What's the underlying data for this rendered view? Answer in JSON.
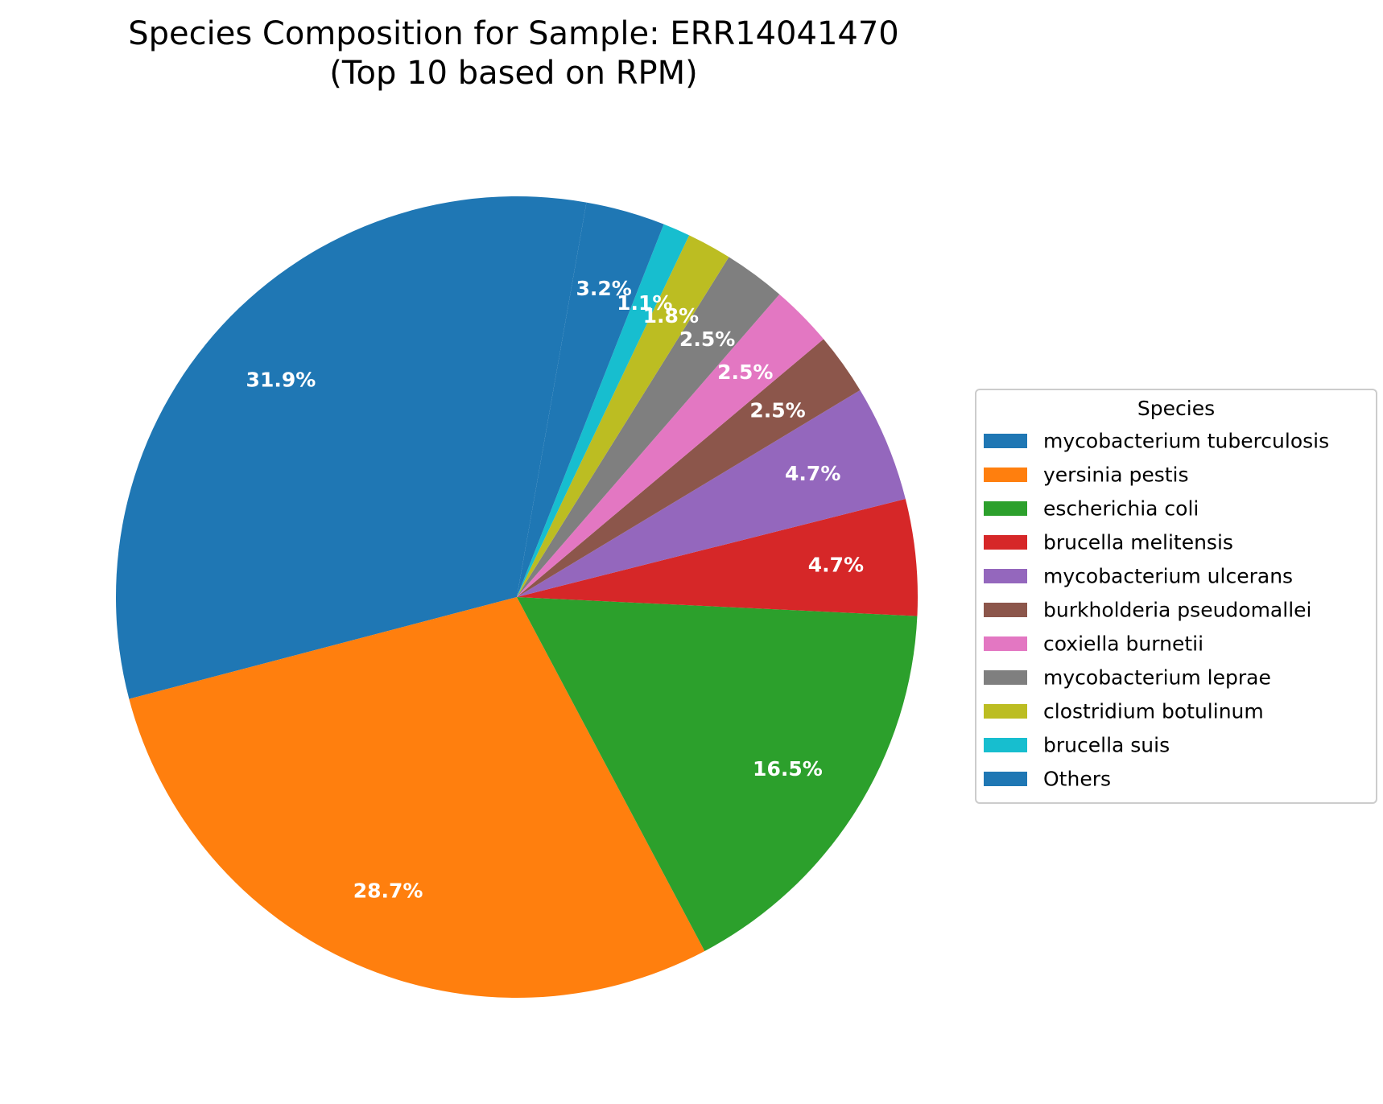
{
  "chart_data": {
    "type": "pie",
    "title": "Species Composition for Sample: ERR14041470",
    "subtitle": "(Top 10 based on RPM)",
    "legend_title": "Species",
    "legend_position": "right",
    "start_angle_deg": 80,
    "direction": "counterclockwise",
    "slices": [
      {
        "label": "mycobacterium tuberculosis",
        "value": 31.9,
        "pct_label": "31.9%",
        "color": "#1f77b4"
      },
      {
        "label": "yersinia pestis",
        "value": 28.7,
        "pct_label": "28.7%",
        "color": "#ff7f0e"
      },
      {
        "label": "escherichia coli",
        "value": 16.5,
        "pct_label": "16.5%",
        "color": "#2ca02c"
      },
      {
        "label": "brucella melitensis",
        "value": 4.7,
        "pct_label": "4.7%",
        "color": "#d62728"
      },
      {
        "label": "mycobacterium ulcerans",
        "value": 4.7,
        "pct_label": "4.7%",
        "color": "#9467bd"
      },
      {
        "label": "burkholderia pseudomallei",
        "value": 2.5,
        "pct_label": "2.5%",
        "color": "#8c564b"
      },
      {
        "label": "coxiella burnetii",
        "value": 2.5,
        "pct_label": "2.5%",
        "color": "#e377c2"
      },
      {
        "label": "mycobacterium leprae",
        "value": 2.5,
        "pct_label": "2.5%",
        "color": "#7f7f7f"
      },
      {
        "label": "clostridium botulinum",
        "value": 1.8,
        "pct_label": "1.8%",
        "color": "#bcbd22"
      },
      {
        "label": "brucella suis",
        "value": 1.1,
        "pct_label": "1.1%",
        "color": "#17becf"
      },
      {
        "label": "Others",
        "value": 3.2,
        "pct_label": "3.2%",
        "color": "#1f77b4"
      }
    ]
  }
}
